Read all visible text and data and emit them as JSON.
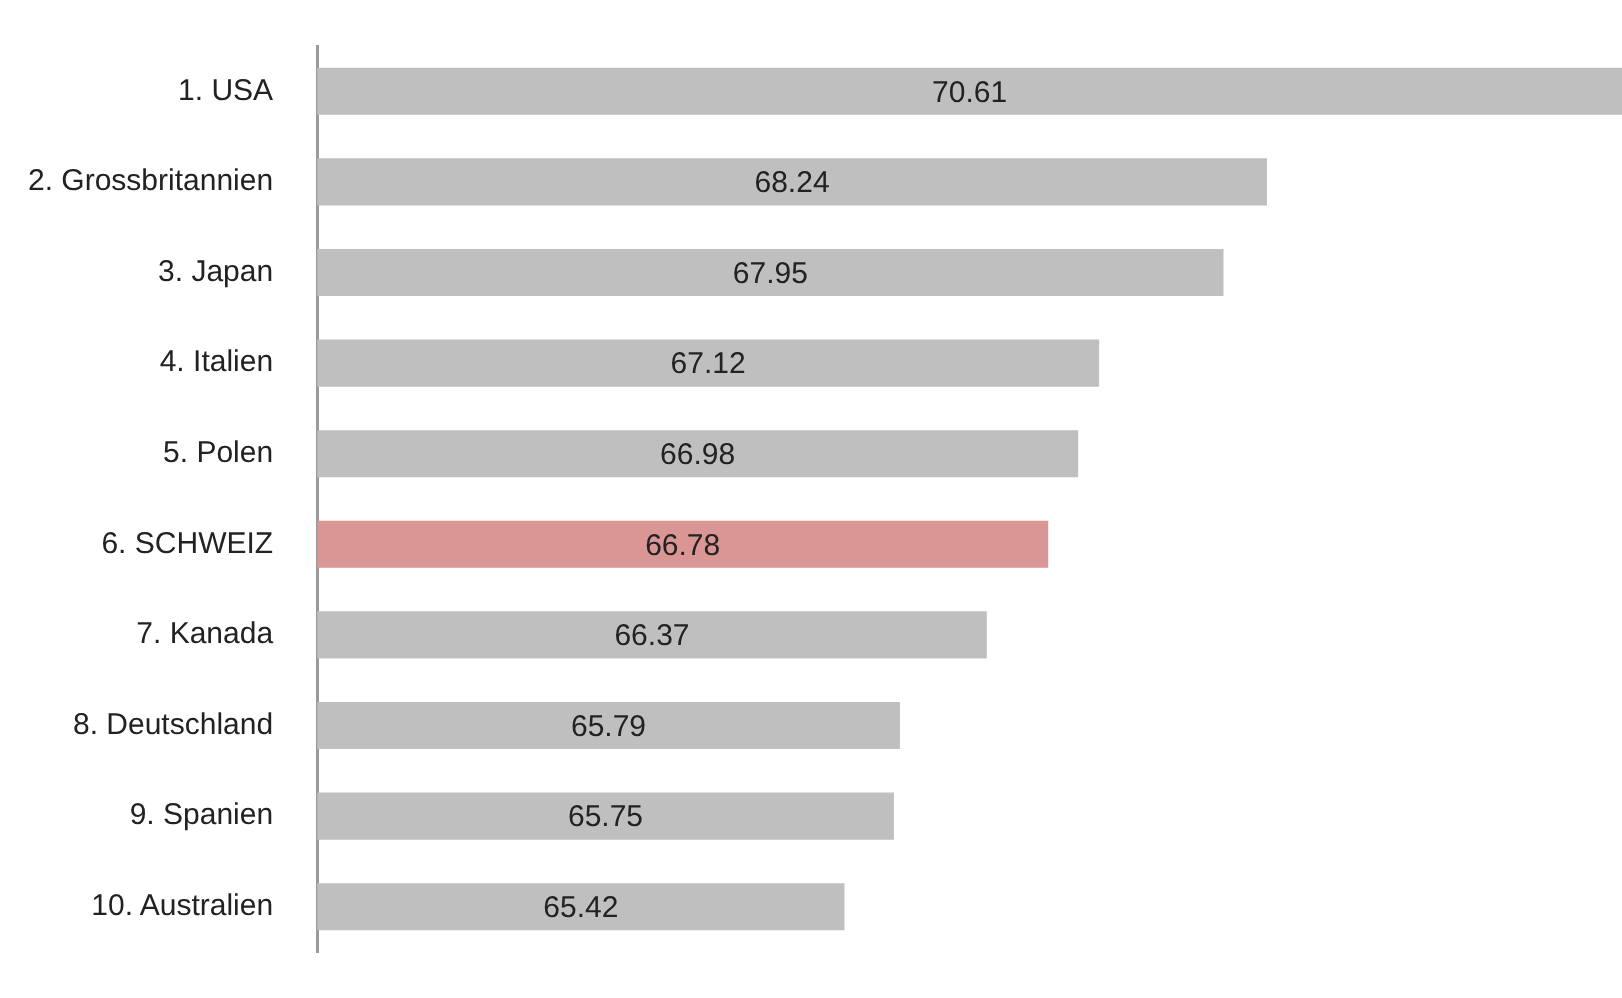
{
  "chart_data": {
    "type": "bar",
    "orientation": "horizontal",
    "categories": [
      "1. USA",
      "2. Grossbritannien",
      "3. Japan",
      "4. Italien",
      "5. Polen",
      "6. SCHWEIZ",
      "7. Kanada",
      "8. Deutschland",
      "9. Spanien",
      "10. Australien"
    ],
    "values": [
      70.61,
      68.24,
      67.95,
      67.12,
      66.98,
      66.78,
      66.37,
      65.79,
      65.75,
      65.42
    ],
    "colors": [
      "#bfbfbf",
      "#bfbfbf",
      "#bfbfbf",
      "#bfbfbf",
      "#bfbfbf",
      "#d99694",
      "#bfbfbf",
      "#bfbfbf",
      "#bfbfbf",
      "#bfbfbf"
    ],
    "xlim": [
      61.9,
      70.61
    ],
    "tick_labels": "y",
    "data_labels": true,
    "grid": false,
    "legend": false
  }
}
